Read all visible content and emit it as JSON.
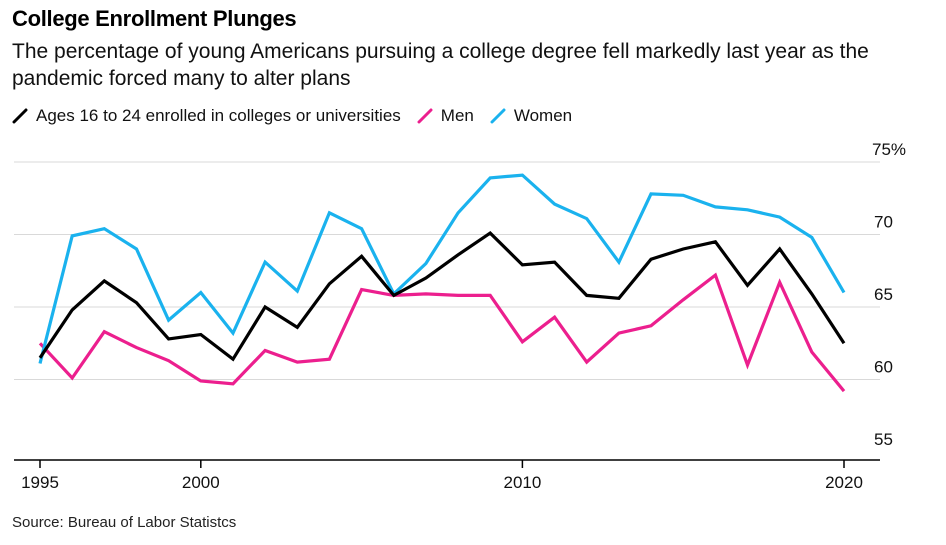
{
  "header": {
    "title": "College Enrollment Plunges",
    "subtitle": "The percentage of young Americans pursuing a college degree fell markedly last year as the pandemic forced many to alter plans"
  },
  "footer": {
    "source": "Source: Bureau of Labor Statistcs"
  },
  "chart_data": {
    "type": "line",
    "title": "College Enrollment Plunges",
    "xlabel": "",
    "ylabel": "",
    "xlim": [
      1995,
      2020
    ],
    "ylim": [
      55,
      75
    ],
    "x": [
      1995,
      1996,
      1997,
      1998,
      1999,
      2000,
      2001,
      2002,
      2003,
      2004,
      2005,
      2006,
      2007,
      2008,
      2009,
      2010,
      2011,
      2012,
      2013,
      2014,
      2015,
      2016,
      2017,
      2018,
      2019,
      2020
    ],
    "x_ticks": [
      {
        "value": 1995,
        "label": "1995"
      },
      {
        "value": 2000,
        "label": "2000"
      },
      {
        "value": 2010,
        "label": "2010"
      },
      {
        "value": 2020,
        "label": "2020"
      }
    ],
    "y_ticks": [
      {
        "value": 75,
        "label": "75%"
      },
      {
        "value": 70,
        "label": "70"
      },
      {
        "value": 65,
        "label": "65"
      },
      {
        "value": 60,
        "label": "60"
      },
      {
        "value": 55,
        "label": "55"
      }
    ],
    "grid": true,
    "series": [
      {
        "name": "Ages 16 to 24 enrolled in colleges or universities",
        "color": "#000000",
        "values": [
          61.5,
          64.8,
          66.8,
          65.3,
          62.8,
          63.1,
          61.4,
          65.0,
          63.6,
          66.6,
          68.5,
          65.8,
          67.0,
          68.6,
          70.1,
          67.9,
          68.1,
          65.8,
          65.6,
          68.3,
          69.0,
          69.5,
          66.5,
          69.0,
          65.9,
          62.5
        ]
      },
      {
        "name": "Men",
        "color": "#ec1f8e",
        "values": [
          62.5,
          60.1,
          63.3,
          62.2,
          61.3,
          59.9,
          59.7,
          62.0,
          61.2,
          61.4,
          66.2,
          65.8,
          65.9,
          65.8,
          65.8,
          62.6,
          64.3,
          61.2,
          63.2,
          63.7,
          65.5,
          67.2,
          61.0,
          66.7,
          61.9,
          59.2
        ]
      },
      {
        "name": "Women",
        "color": "#1ab2ee",
        "values": [
          61.1,
          69.9,
          70.4,
          69.0,
          64.1,
          66.0,
          63.2,
          68.1,
          66.1,
          71.5,
          70.4,
          65.9,
          68.0,
          71.5,
          73.9,
          74.1,
          72.1,
          71.1,
          68.1,
          72.8,
          72.7,
          71.9,
          71.7,
          71.2,
          69.8,
          66.0
        ]
      }
    ]
  }
}
